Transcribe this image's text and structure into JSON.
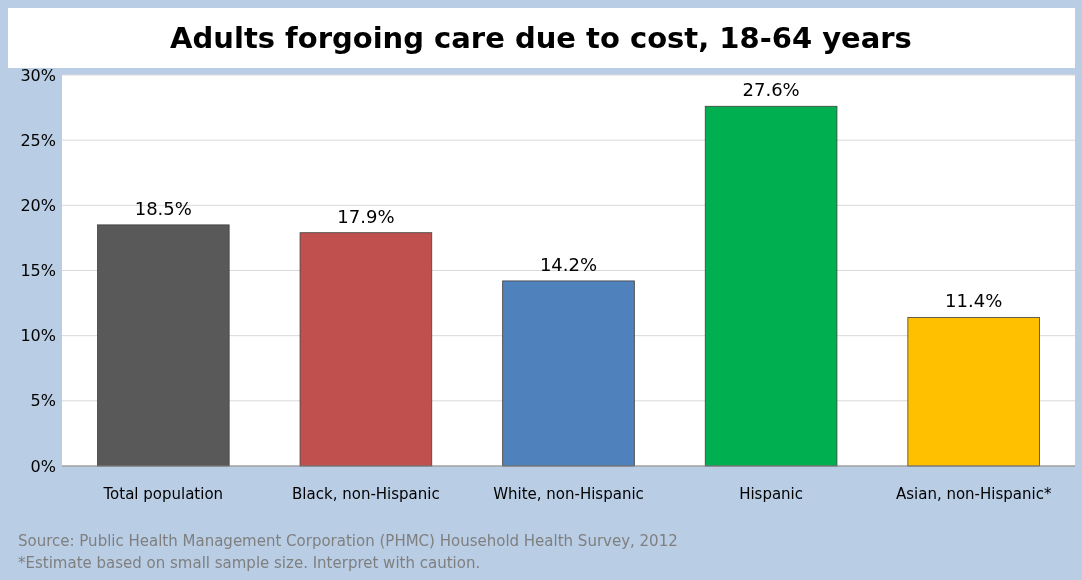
{
  "chart_data": {
    "type": "bar",
    "title": "Adults forgoing care due to cost, 18-64 years",
    "categories": [
      "Total population",
      "Black, non-Hispanic",
      "White, non-Hispanic",
      "Hispanic",
      "Asian, non-Hispanic*"
    ],
    "values": [
      18.5,
      17.9,
      14.2,
      27.6,
      11.4
    ],
    "colors": [
      "#595959",
      "#c0504d",
      "#4f81bd",
      "#00b050",
      "#ffc000"
    ],
    "value_labels": [
      "18.5%",
      "17.9%",
      "14.2%",
      "27.6%",
      "11.4%"
    ],
    "ylim": [
      0,
      30
    ],
    "yticks": [
      {
        "value": 0,
        "label": "0%"
      },
      {
        "value": 5,
        "label": "5%"
      },
      {
        "value": 10,
        "label": "10%"
      },
      {
        "value": 15,
        "label": "15%"
      },
      {
        "value": 20,
        "label": "20%"
      },
      {
        "value": 25,
        "label": "25%"
      },
      {
        "value": 30,
        "label": "30%"
      }
    ],
    "grid": "y",
    "annotations": [
      "Source: Public Health Management Corporation (PHMC) Household Health Survey, 2012",
      "*Estimate based on small sample size. Interpret with caution."
    ]
  }
}
